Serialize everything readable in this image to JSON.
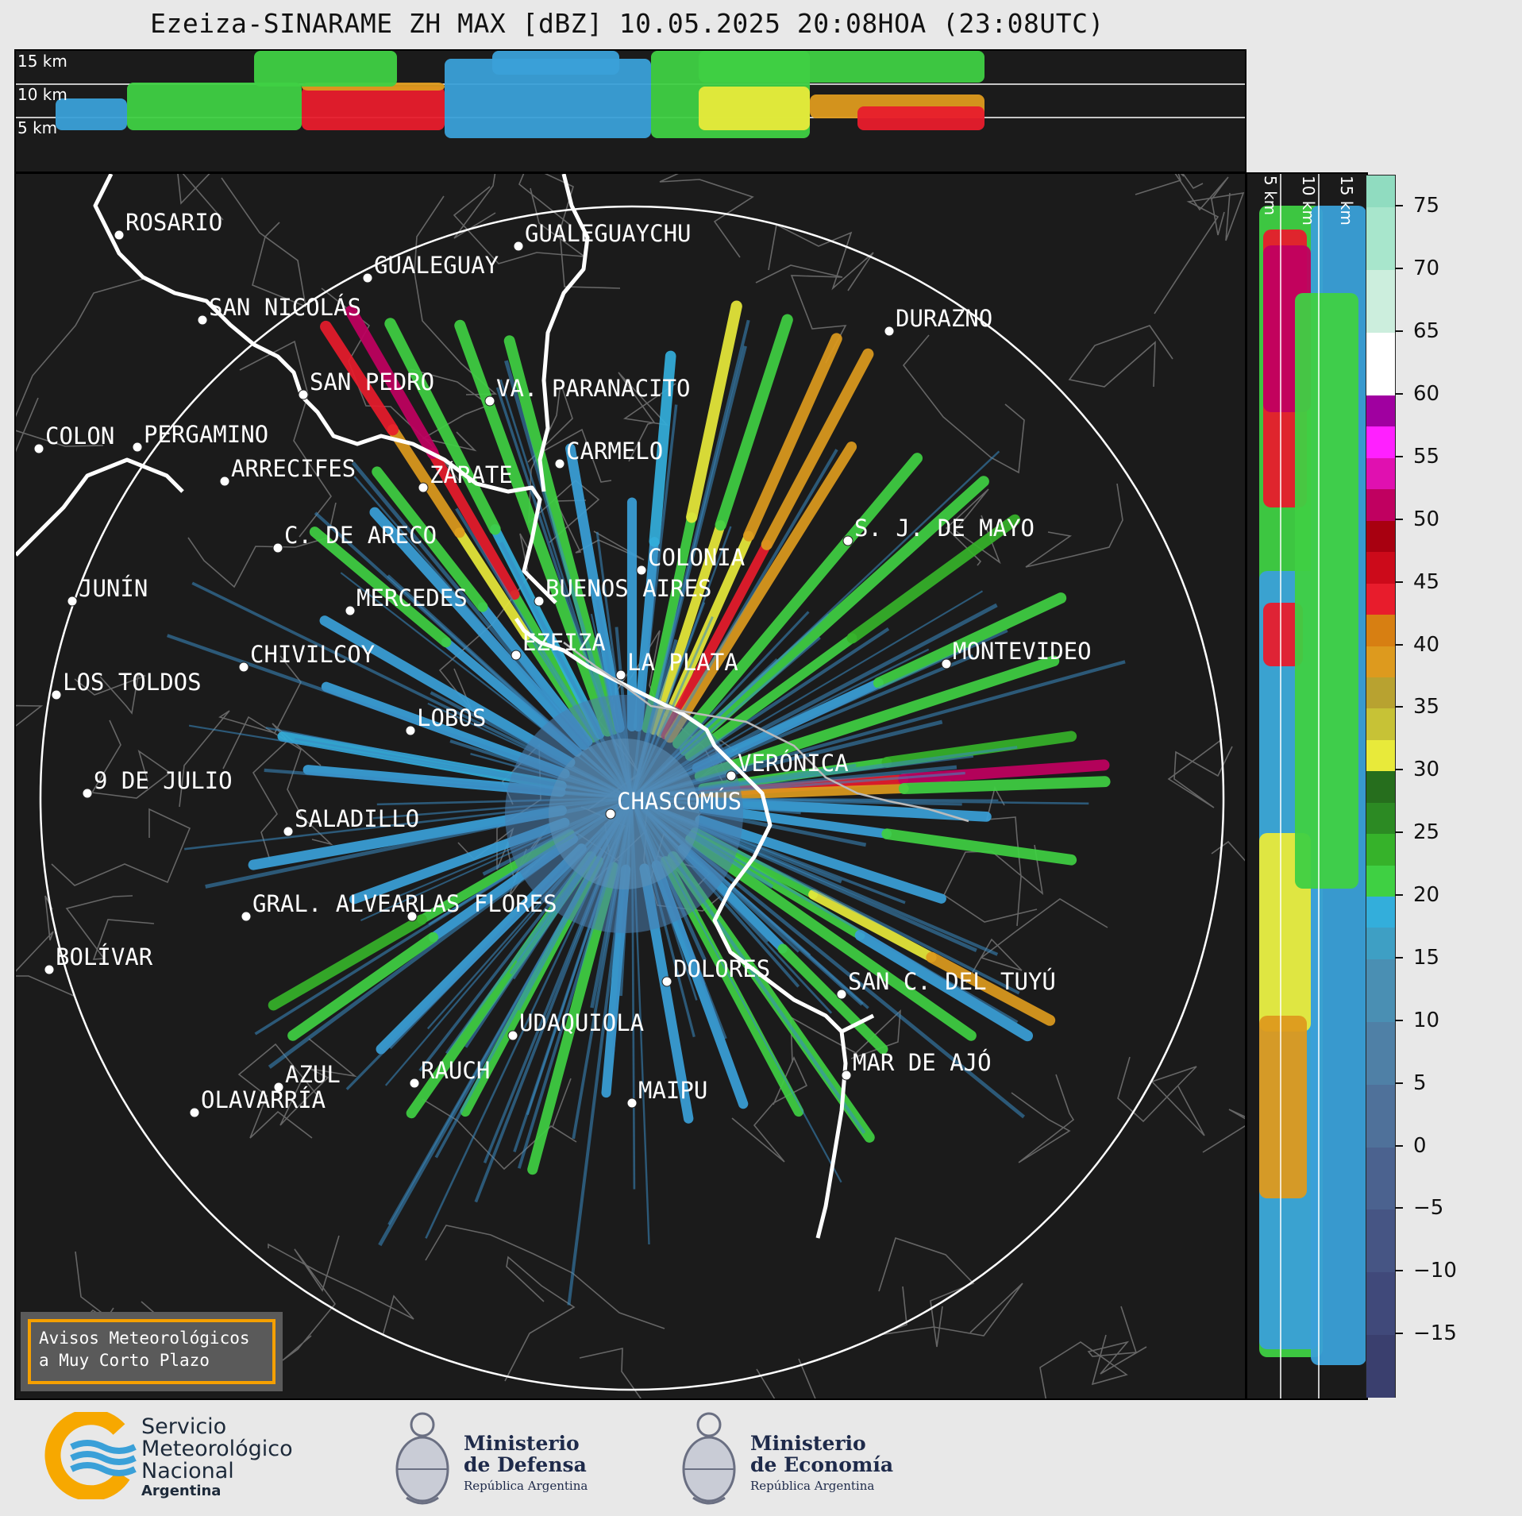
{
  "title": "Ezeiza-SINARAME ZH MAX [dBZ] 10.05.2025 20:08HOA (23:08UTC)",
  "top_panel": {
    "altitude_labels": [
      "15 km",
      "10 km",
      "5 km"
    ]
  },
  "side_panel": {
    "altitude_labels": [
      "5 km",
      "10 km",
      "15 km"
    ]
  },
  "colorbar": {
    "unit": "dBZ",
    "ticks": [
      "75",
      "70",
      "65",
      "60",
      "55",
      "50",
      "45",
      "40",
      "35",
      "30",
      "25",
      "20",
      "15",
      "10",
      "5",
      "0",
      "−5",
      "−10",
      "−15"
    ],
    "colors": [
      "#3a3f6e",
      "#40497a",
      "#465584",
      "#4b628f",
      "#4f719a",
      "#4f80a6",
      "#4a8fb3",
      "#3e9fc4",
      "#33aedb",
      "#3fd043",
      "#36b22a",
      "#2c8a23",
      "#266e1d",
      "#e8ea3a",
      "#c7c236",
      "#b8a230",
      "#dd9a1e",
      "#d77f12",
      "#e81c2c",
      "#cc0a1a",
      "#a80010",
      "#c00060",
      "#e010b0",
      "#ff20ff",
      "#a000a0",
      "#ffffff",
      "#cceedd",
      "#a8e6cc",
      "#90dcc0"
    ],
    "color_stops_dbz": [
      -20,
      -15,
      -10,
      -5,
      0,
      5,
      10,
      15,
      17.5,
      20,
      22.5,
      25,
      27.5,
      30,
      32.5,
      35,
      37.5,
      40,
      42.5,
      45,
      47.5,
      50,
      52.5,
      55,
      57.5,
      60,
      65,
      70,
      75
    ]
  },
  "places": [
    {
      "name": "ROSARIO"
    },
    {
      "name": "GUALEGUAYCHU"
    },
    {
      "name": "GUALEGUAY"
    },
    {
      "name": "SAN NICOLÁS"
    },
    {
      "name": "DURAZNO"
    },
    {
      "name": "SAN PEDRO"
    },
    {
      "name": "VA. PARANACITO"
    },
    {
      "name": "COLON"
    },
    {
      "name": "PERGAMINO"
    },
    {
      "name": "CARMELO"
    },
    {
      "name": "ARRECIFES"
    },
    {
      "name": "ZÁRATE"
    },
    {
      "name": "C. DE ARECO"
    },
    {
      "name": "S. J. DE MAYO"
    },
    {
      "name": "COLONIA"
    },
    {
      "name": "JUNÍN"
    },
    {
      "name": "BUENOS AIRES"
    },
    {
      "name": "MERCEDES"
    },
    {
      "name": "EZEIZA"
    },
    {
      "name": "CHIVILCOY"
    },
    {
      "name": "MONTEVIDEO"
    },
    {
      "name": "LA PLATA"
    },
    {
      "name": "LOS TOLDOS"
    },
    {
      "name": "LOBOS"
    },
    {
      "name": "VERÓNICA"
    },
    {
      "name": "9 DE JULIO"
    },
    {
      "name": "CHASCOMÚS"
    },
    {
      "name": "SALADILLO"
    },
    {
      "name": "GRAL. ALVEAR"
    },
    {
      "name": "LAS FLORES"
    },
    {
      "name": "BOLÍVAR"
    },
    {
      "name": "DOLORES"
    },
    {
      "name": "SAN C. DEL TUYÚ"
    },
    {
      "name": "UDAQUIOLA"
    },
    {
      "name": "MAR DE AJÓ"
    },
    {
      "name": "AZUL"
    },
    {
      "name": "RAUCH"
    },
    {
      "name": "MAIPU"
    },
    {
      "name": "OLAVARRÍA"
    }
  ],
  "aviso": {
    "line1": "Avisos Meteorológicos",
    "line2": "a Muy Corto Plazo"
  },
  "footer": {
    "smn": {
      "line1": "Servicio",
      "line2": "Meteorológico",
      "line3": "Nacional",
      "line4": "Argentina"
    },
    "defensa": {
      "line1": "Ministerio",
      "line2": "de Defensa",
      "line3": "República Argentina"
    },
    "economia": {
      "line1": "Ministerio",
      "line2": "de Economía",
      "line3": "República Argentina"
    }
  }
}
